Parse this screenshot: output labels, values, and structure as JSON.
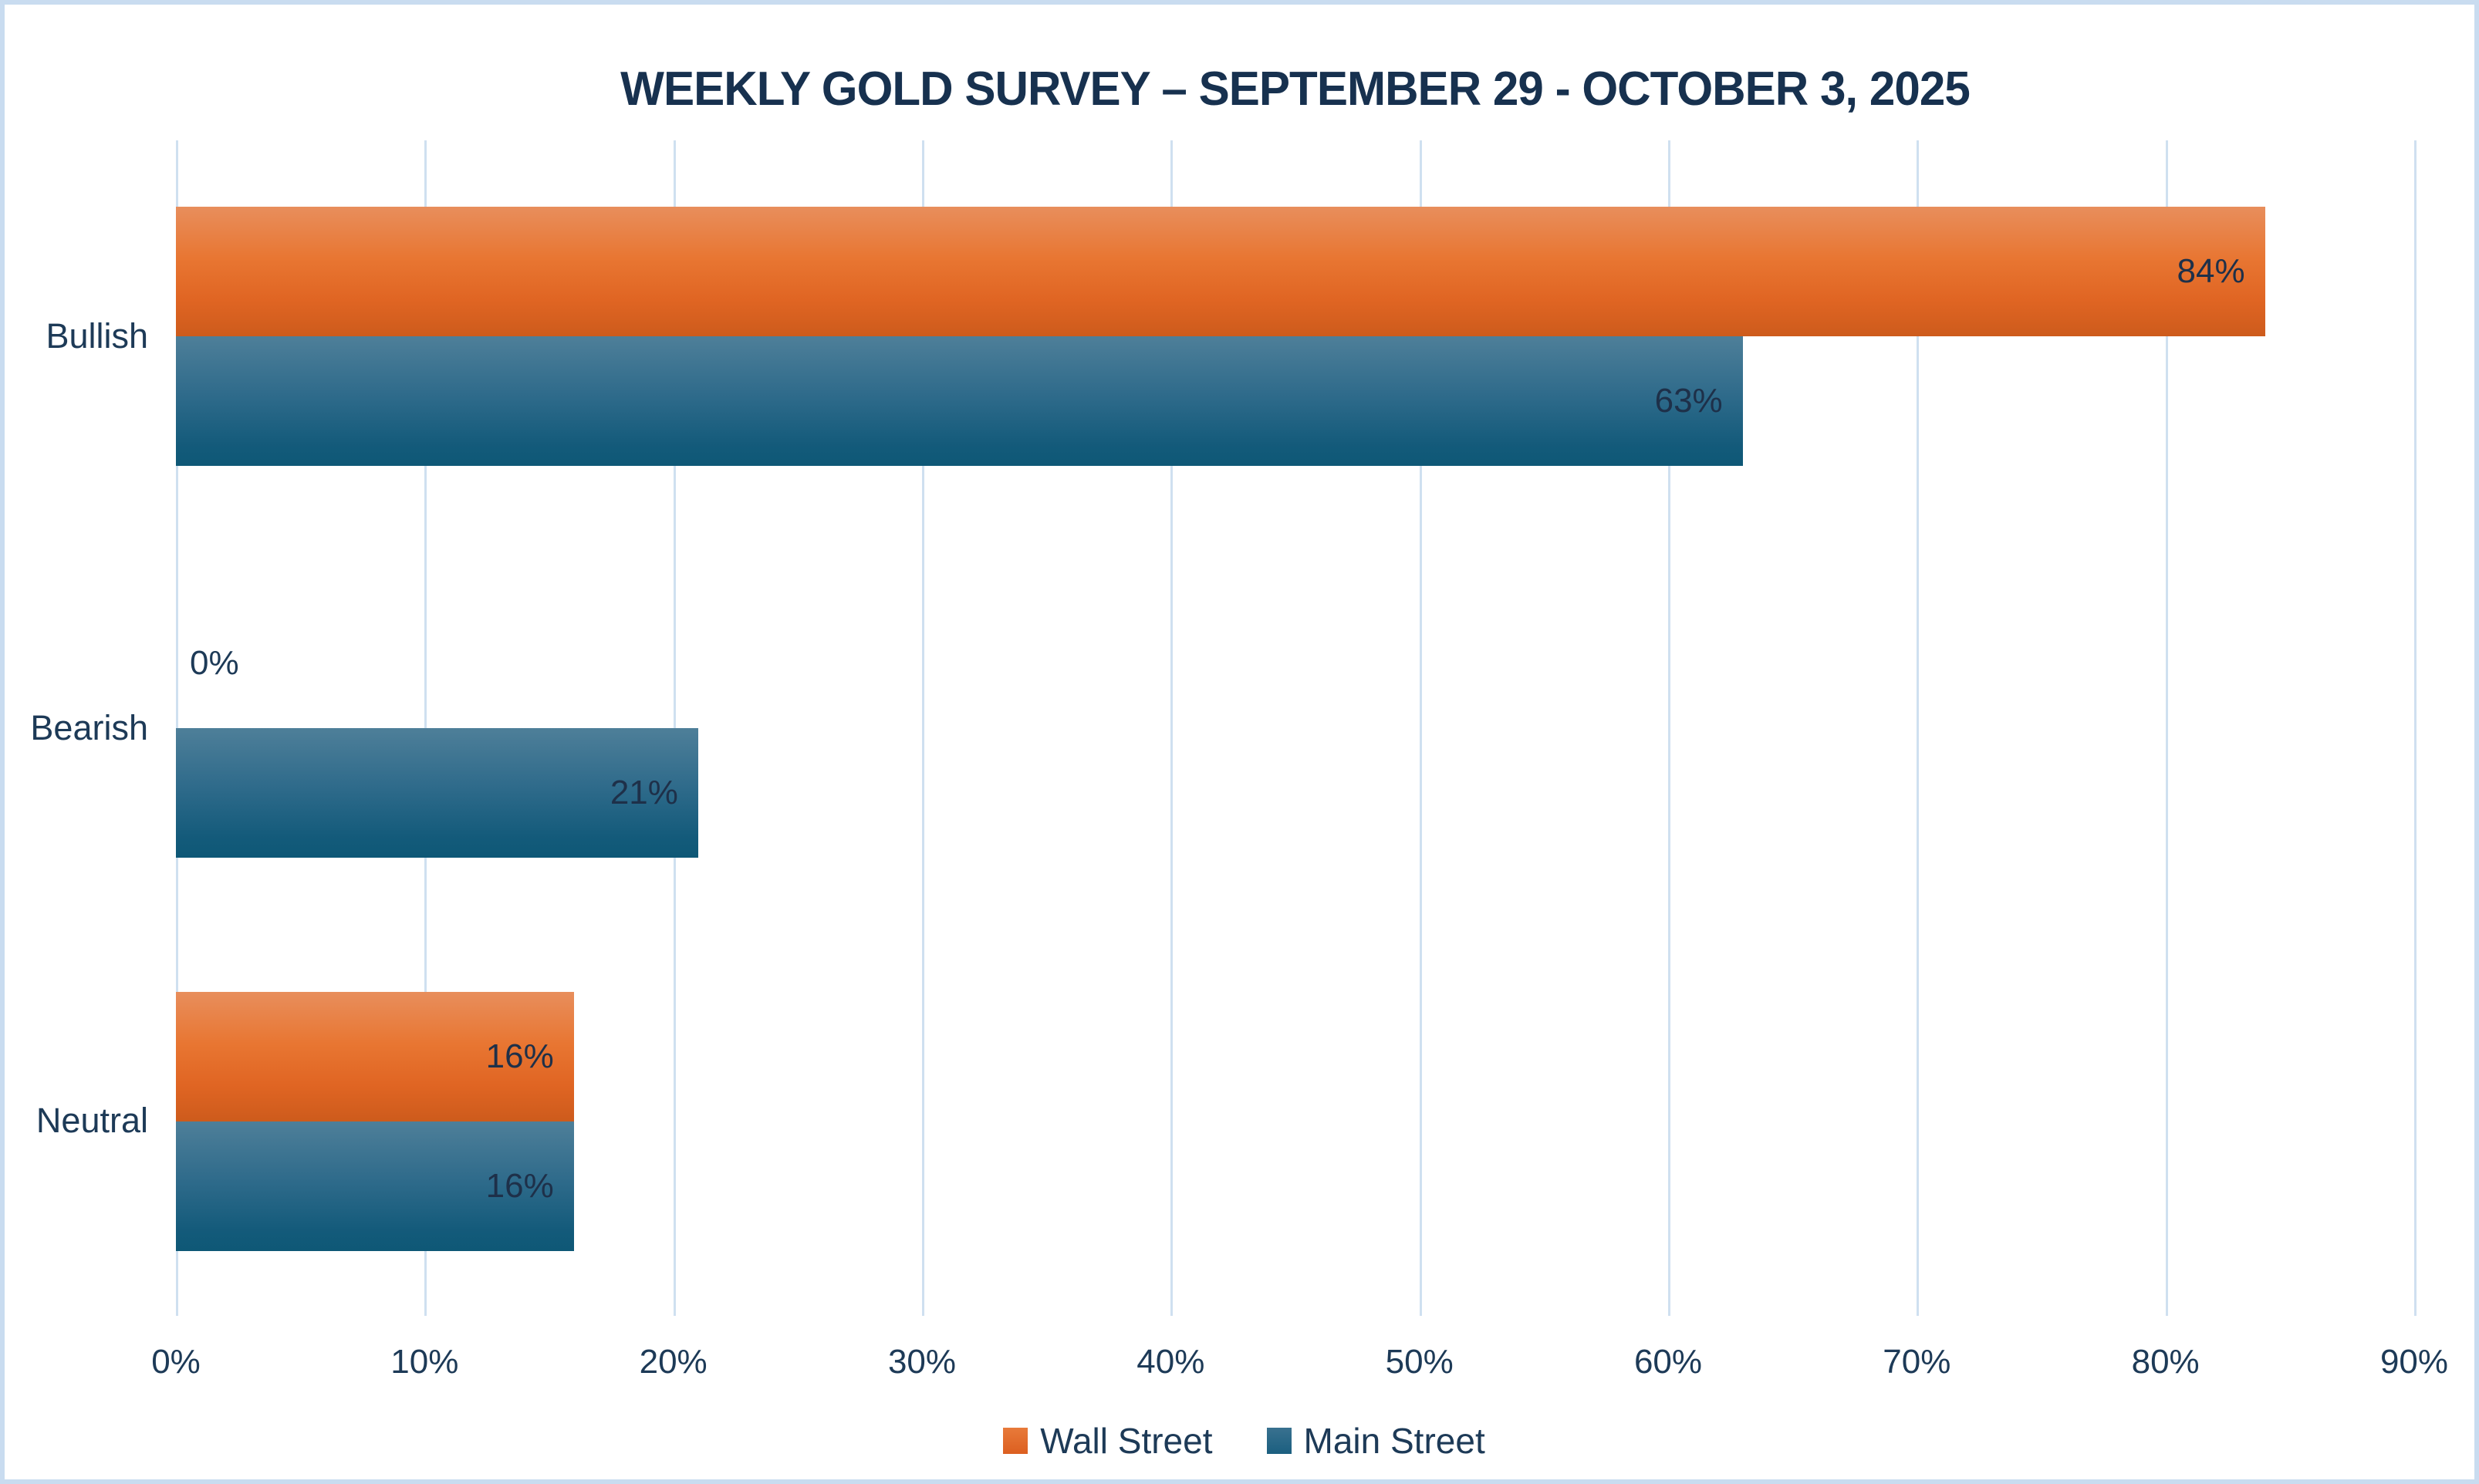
{
  "page": {
    "background": "#FFFFFF",
    "border_color": "#C9DCF0",
    "text_color": "#1D3A57",
    "gridline_color": "#CFE0F0"
  },
  "chart_data": {
    "type": "bar",
    "orientation": "horizontal",
    "title": "WEEKLY GOLD SURVEY – SEPTEMBER 29 - OCTOBER 3, 2025",
    "categories": [
      "Bullish",
      "Bearish",
      "Neutral"
    ],
    "series": [
      {
        "name": "Wall Street",
        "color": "#E8702A",
        "gradient": [
          "#E88E5C",
          "#CD5B1C"
        ],
        "values": [
          84,
          0,
          16
        ],
        "labels": [
          "84%",
          "0%",
          "16%"
        ]
      },
      {
        "name": "Main Street",
        "color": "#2A6A8C",
        "gradient": [
          "#4E7F99",
          "#0E5876"
        ],
        "values": [
          63,
          21,
          16
        ],
        "labels": [
          "63%",
          "21%",
          "16%"
        ]
      }
    ],
    "xlim": [
      0,
      90
    ],
    "x_ticks": [
      "0%",
      "10%",
      "20%",
      "30%",
      "40%",
      "50%",
      "60%",
      "70%",
      "80%",
      "90%"
    ],
    "grid": "vertical",
    "legend_position": "bottom",
    "data_label_position": "inside-end"
  }
}
